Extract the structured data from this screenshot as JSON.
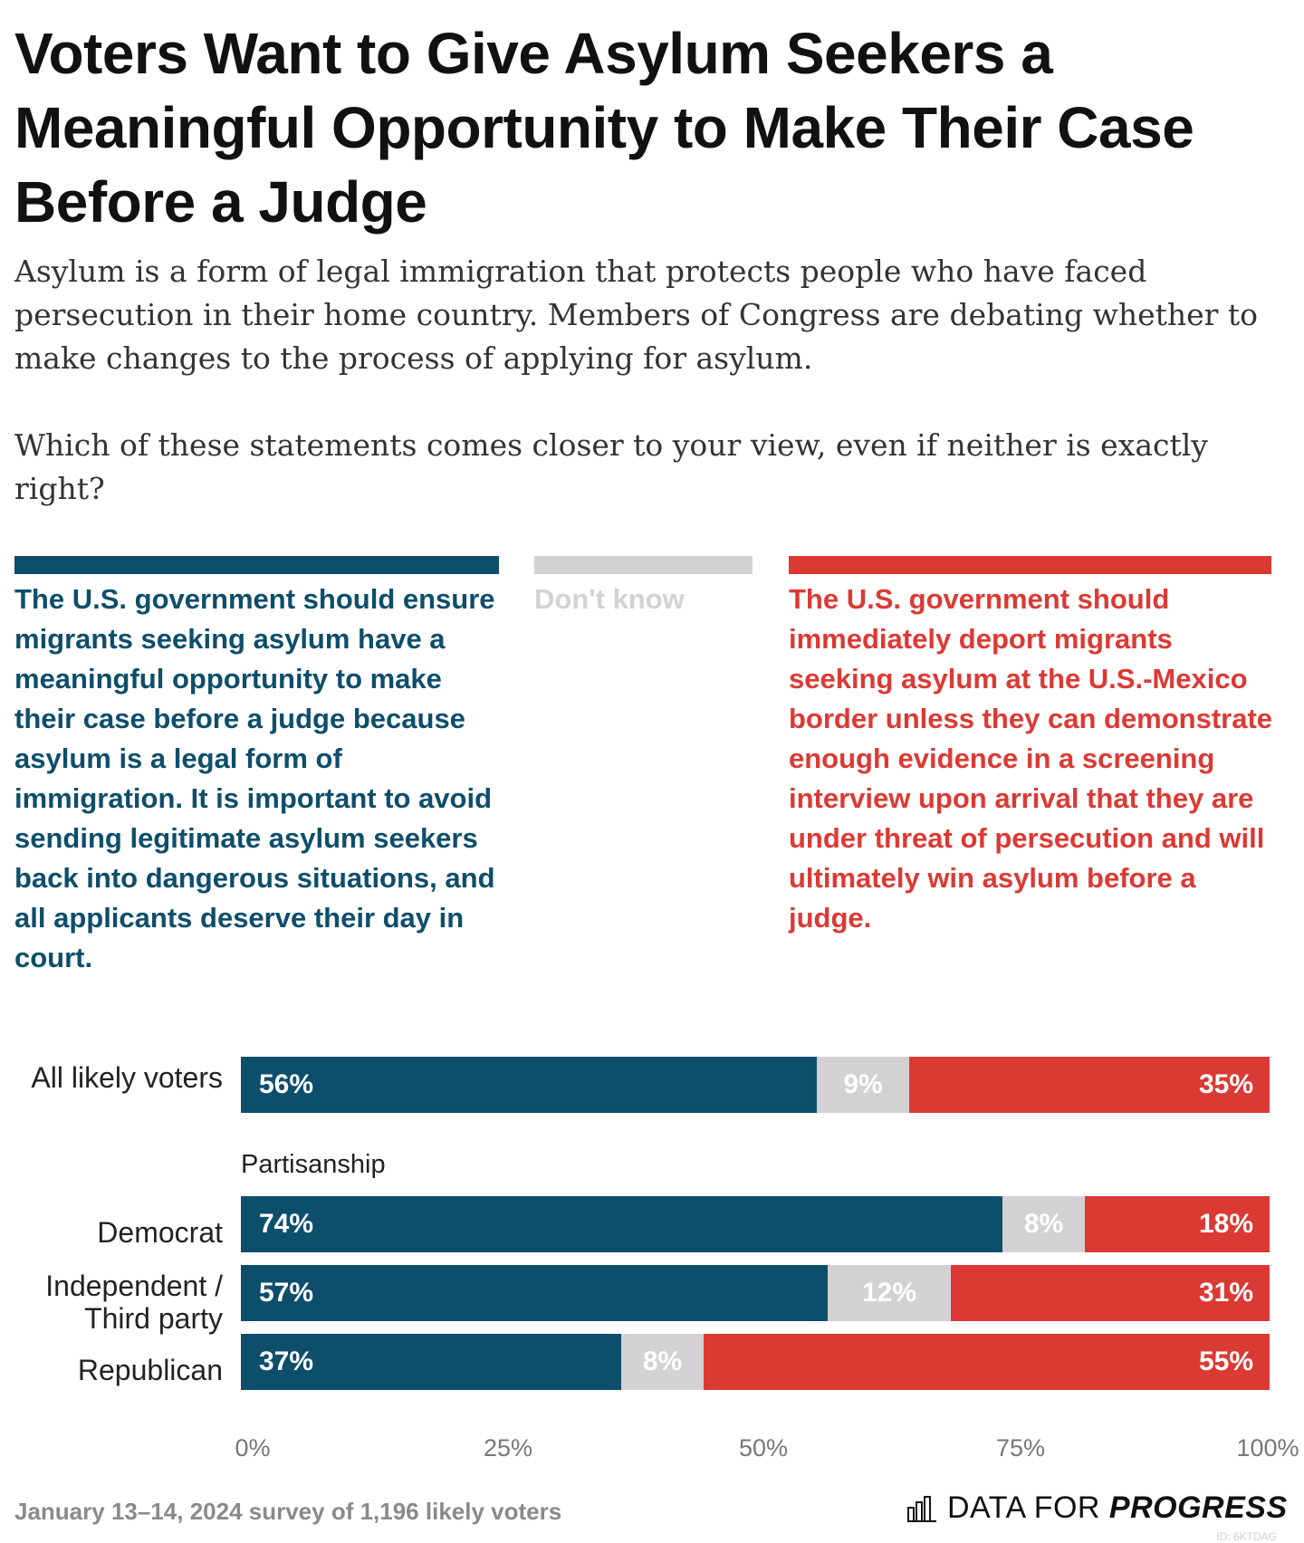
{
  "title": "Voters Want to Give Asylum Seekers a Meaningful Opportunity to Make Their Case Before a Judge",
  "subtitle": "Asylum is a form of legal immigration that protects people who have faced persecution in their home country. Members of Congress are debating whether to make changes to the process of applying for asylum.",
  "question": "Which of these statements comes closer to your view, even if neither is exactly right?",
  "colors": {
    "yes": "#0d4e6b",
    "dk": "#d3d1d4",
    "no": "#db3a34"
  },
  "legend": {
    "yes": "The U.S. government should ensure migrants seeking asylum have a meaningful opportunity to make their case before a judge because asylum is a legal form of immigration. It is important to avoid sending legitimate asylum seekers back into dangerous situations, and all applicants deserve their day in court.",
    "dk": "Don't know",
    "no": "The U.S. government should immediately deport migrants seeking asylum at the U.S.-Mexico border unless they can demonstrate enough evidence in a screening interview upon arrival that they are under threat of persecution and will ultimately win asylum before a judge."
  },
  "chart_data": {
    "type": "bar",
    "orientation": "horizontal-stacked",
    "categories": [
      "All likely voters",
      "Democrat",
      "Independent / Third party",
      "Republican"
    ],
    "group_label": "Partisanship",
    "series": [
      {
        "name": "The U.S. government should ensure migrants seeking asylum have a meaningful opportunity to make their case before a judge",
        "values": [
          56,
          74,
          57,
          37
        ]
      },
      {
        "name": "Don't know",
        "values": [
          9,
          8,
          12,
          8
        ]
      },
      {
        "name": "The U.S. government should immediately deport migrants seeking asylum at the U.S.-Mexico border unless they can demonstrate enough evidence",
        "values": [
          35,
          18,
          31,
          55
        ]
      }
    ],
    "value_labels": [
      [
        "56%",
        "9%",
        "35%"
      ],
      [
        "74%",
        "8%",
        "18%"
      ],
      [
        "57%",
        "12%",
        "31%"
      ],
      [
        "37%",
        "8%",
        "55%"
      ]
    ],
    "xlim": [
      0,
      100
    ],
    "xticks": [
      "0%",
      "25%",
      "50%",
      "75%",
      "100%"
    ]
  },
  "footer": {
    "note": "January 13–14, 2024 survey of 1,196 likely voters",
    "brand_plain": "DATA FOR ",
    "brand_bold": "PROGRESS",
    "id": "ID: 6KTDAG"
  }
}
